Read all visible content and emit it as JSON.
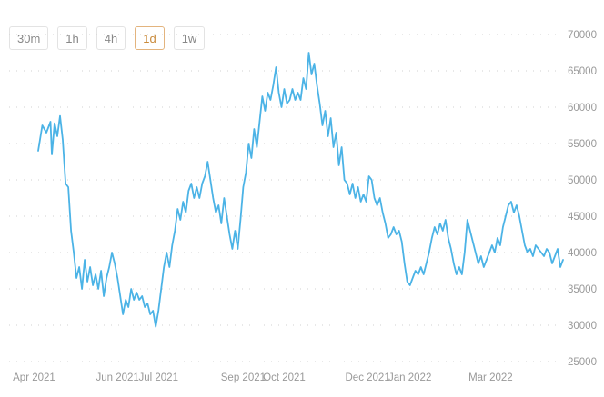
{
  "timeframes": [
    {
      "label": "30m",
      "active": false
    },
    {
      "label": "1h",
      "active": false
    },
    {
      "label": "4h",
      "active": false
    },
    {
      "label": "1d",
      "active": true
    },
    {
      "label": "1w",
      "active": false
    }
  ],
  "colors": {
    "line": "#4bb3e6",
    "grid": "#d0d0d0",
    "tick_text": "#999999",
    "active_border": "#e3b47e"
  },
  "chart_data": {
    "type": "line",
    "grid": "horizontal dotted",
    "ylim": [
      25000,
      70000
    ],
    "y_ticks": [
      25000,
      30000,
      35000,
      40000,
      45000,
      50000,
      55000,
      60000,
      65000,
      70000
    ],
    "y_tick_labels": [
      "25000",
      "30000",
      "35000",
      "40000",
      "45000",
      "50000",
      "55000",
      "60000",
      "65000",
      "70000"
    ],
    "x_range": [
      "2021-04-04",
      "2022-04-23"
    ],
    "x_ticks": [
      {
        "date": "2021-04-01",
        "label": "Apr 2021"
      },
      {
        "date": "2021-06-01",
        "label": "Jun 2021"
      },
      {
        "date": "2021-07-01",
        "label": "Jul 2021"
      },
      {
        "date": "2021-09-01",
        "label": "Sep 2021"
      },
      {
        "date": "2021-10-01",
        "label": "Oct 2021"
      },
      {
        "date": "2021-12-01",
        "label": "Dec 2021"
      },
      {
        "date": "2022-01-01",
        "label": "Jan 2022"
      },
      {
        "date": "2022-03-01",
        "label": "Mar 2022"
      }
    ],
    "series": [
      {
        "values": [
          [
            "2021-04-04",
            54000
          ],
          [
            "2021-04-07",
            57500
          ],
          [
            "2021-04-10",
            56500
          ],
          [
            "2021-04-13",
            58000
          ],
          [
            "2021-04-14",
            53500
          ],
          [
            "2021-04-16",
            57800
          ],
          [
            "2021-04-18",
            56000
          ],
          [
            "2021-04-20",
            58800
          ],
          [
            "2021-04-22",
            55500
          ],
          [
            "2021-04-24",
            49500
          ],
          [
            "2021-04-26",
            49000
          ],
          [
            "2021-04-28",
            43000
          ],
          [
            "2021-04-30",
            40000
          ],
          [
            "2021-05-02",
            36500
          ],
          [
            "2021-05-04",
            38000
          ],
          [
            "2021-05-06",
            35000
          ],
          [
            "2021-05-08",
            39000
          ],
          [
            "2021-05-10",
            36000
          ],
          [
            "2021-05-12",
            38000
          ],
          [
            "2021-05-14",
            35500
          ],
          [
            "2021-05-16",
            37000
          ],
          [
            "2021-05-18",
            35000
          ],
          [
            "2021-05-20",
            37500
          ],
          [
            "2021-05-22",
            34000
          ],
          [
            "2021-05-24",
            36500
          ],
          [
            "2021-05-26",
            38000
          ],
          [
            "2021-05-28",
            40000
          ],
          [
            "2021-05-30",
            38500
          ],
          [
            "2021-06-01",
            36500
          ],
          [
            "2021-06-03",
            34000
          ],
          [
            "2021-06-05",
            31500
          ],
          [
            "2021-06-07",
            33500
          ],
          [
            "2021-06-09",
            32500
          ],
          [
            "2021-06-11",
            35000
          ],
          [
            "2021-06-13",
            33500
          ],
          [
            "2021-06-15",
            34500
          ],
          [
            "2021-06-17",
            33500
          ],
          [
            "2021-06-19",
            34000
          ],
          [
            "2021-06-21",
            32500
          ],
          [
            "2021-06-23",
            33000
          ],
          [
            "2021-06-25",
            31500
          ],
          [
            "2021-06-27",
            32000
          ],
          [
            "2021-06-29",
            29800
          ],
          [
            "2021-07-01",
            32000
          ],
          [
            "2021-07-03",
            35000
          ],
          [
            "2021-07-05",
            38000
          ],
          [
            "2021-07-07",
            40000
          ],
          [
            "2021-07-09",
            38000
          ],
          [
            "2021-07-11",
            41000
          ],
          [
            "2021-07-13",
            43000
          ],
          [
            "2021-07-15",
            46000
          ],
          [
            "2021-07-17",
            44500
          ],
          [
            "2021-07-19",
            47000
          ],
          [
            "2021-07-21",
            45500
          ],
          [
            "2021-07-23",
            48500
          ],
          [
            "2021-07-25",
            49500
          ],
          [
            "2021-07-27",
            47500
          ],
          [
            "2021-07-29",
            49000
          ],
          [
            "2021-07-31",
            47500
          ],
          [
            "2021-08-02",
            49500
          ],
          [
            "2021-08-04",
            50500
          ],
          [
            "2021-08-06",
            52500
          ],
          [
            "2021-08-08",
            50000
          ],
          [
            "2021-08-10",
            47500
          ],
          [
            "2021-08-12",
            45500
          ],
          [
            "2021-08-14",
            46500
          ],
          [
            "2021-08-16",
            44000
          ],
          [
            "2021-08-18",
            47500
          ],
          [
            "2021-08-20",
            45000
          ],
          [
            "2021-08-22",
            42500
          ],
          [
            "2021-08-24",
            40500
          ],
          [
            "2021-08-26",
            43000
          ],
          [
            "2021-08-28",
            40500
          ],
          [
            "2021-08-30",
            44500
          ],
          [
            "2021-09-01",
            49000
          ],
          [
            "2021-09-03",
            51000
          ],
          [
            "2021-09-05",
            55000
          ],
          [
            "2021-09-07",
            53000
          ],
          [
            "2021-09-09",
            57000
          ],
          [
            "2021-09-11",
            54500
          ],
          [
            "2021-09-13",
            58000
          ],
          [
            "2021-09-15",
            61500
          ],
          [
            "2021-09-17",
            59500
          ],
          [
            "2021-09-19",
            62000
          ],
          [
            "2021-09-21",
            61000
          ],
          [
            "2021-09-23",
            63000
          ],
          [
            "2021-09-25",
            65500
          ],
          [
            "2021-09-27",
            62000
          ],
          [
            "2021-09-29",
            60000
          ],
          [
            "2021-10-01",
            62500
          ],
          [
            "2021-10-03",
            60500
          ],
          [
            "2021-10-05",
            61000
          ],
          [
            "2021-10-07",
            62500
          ],
          [
            "2021-10-09",
            61000
          ],
          [
            "2021-10-11",
            62000
          ],
          [
            "2021-10-13",
            61000
          ],
          [
            "2021-10-15",
            64000
          ],
          [
            "2021-10-17",
            62500
          ],
          [
            "2021-10-19",
            67500
          ],
          [
            "2021-10-21",
            64500
          ],
          [
            "2021-10-23",
            66000
          ],
          [
            "2021-10-25",
            63000
          ],
          [
            "2021-10-27",
            60500
          ],
          [
            "2021-10-29",
            57500
          ],
          [
            "2021-10-31",
            59500
          ],
          [
            "2021-11-02",
            56000
          ],
          [
            "2021-11-04",
            58500
          ],
          [
            "2021-11-06",
            54500
          ],
          [
            "2021-11-08",
            56500
          ],
          [
            "2021-11-10",
            52000
          ],
          [
            "2021-11-12",
            54500
          ],
          [
            "2021-11-14",
            50000
          ],
          [
            "2021-11-16",
            49500
          ],
          [
            "2021-11-18",
            48000
          ],
          [
            "2021-11-20",
            49500
          ],
          [
            "2021-11-22",
            47500
          ],
          [
            "2021-11-24",
            49000
          ],
          [
            "2021-11-26",
            47000
          ],
          [
            "2021-11-28",
            48000
          ],
          [
            "2021-11-30",
            47000
          ],
          [
            "2021-12-02",
            50500
          ],
          [
            "2021-12-04",
            50000
          ],
          [
            "2021-12-06",
            47500
          ],
          [
            "2021-12-08",
            46500
          ],
          [
            "2021-12-10",
            47500
          ],
          [
            "2021-12-12",
            45500
          ],
          [
            "2021-12-14",
            44000
          ],
          [
            "2021-12-16",
            42000
          ],
          [
            "2021-12-18",
            42500
          ],
          [
            "2021-12-20",
            43500
          ],
          [
            "2021-12-22",
            42500
          ],
          [
            "2021-12-24",
            43000
          ],
          [
            "2021-12-26",
            41500
          ],
          [
            "2021-12-28",
            38500
          ],
          [
            "2021-12-30",
            36000
          ],
          [
            "2022-01-01",
            35500
          ],
          [
            "2022-01-03",
            36500
          ],
          [
            "2022-01-05",
            37500
          ],
          [
            "2022-01-07",
            37000
          ],
          [
            "2022-01-09",
            38000
          ],
          [
            "2022-01-11",
            37000
          ],
          [
            "2022-01-13",
            38500
          ],
          [
            "2022-01-15",
            40000
          ],
          [
            "2022-01-17",
            42000
          ],
          [
            "2022-01-19",
            43500
          ],
          [
            "2022-01-21",
            42500
          ],
          [
            "2022-01-23",
            44000
          ],
          [
            "2022-01-25",
            43000
          ],
          [
            "2022-01-27",
            44500
          ],
          [
            "2022-01-29",
            42000
          ],
          [
            "2022-01-31",
            40500
          ],
          [
            "2022-02-02",
            38500
          ],
          [
            "2022-02-04",
            37000
          ],
          [
            "2022-02-06",
            38000
          ],
          [
            "2022-02-08",
            37000
          ],
          [
            "2022-02-10",
            40000
          ],
          [
            "2022-02-12",
            44500
          ],
          [
            "2022-02-14",
            43000
          ],
          [
            "2022-02-16",
            41500
          ],
          [
            "2022-02-18",
            40000
          ],
          [
            "2022-02-20",
            38500
          ],
          [
            "2022-02-22",
            39500
          ],
          [
            "2022-02-24",
            38000
          ],
          [
            "2022-02-26",
            39000
          ],
          [
            "2022-02-28",
            40000
          ],
          [
            "2022-03-02",
            41000
          ],
          [
            "2022-03-04",
            40000
          ],
          [
            "2022-03-06",
            42000
          ],
          [
            "2022-03-08",
            41000
          ],
          [
            "2022-03-10",
            43500
          ],
          [
            "2022-03-12",
            45000
          ],
          [
            "2022-03-14",
            46500
          ],
          [
            "2022-03-16",
            47000
          ],
          [
            "2022-03-18",
            45500
          ],
          [
            "2022-03-20",
            46500
          ],
          [
            "2022-03-22",
            45000
          ],
          [
            "2022-03-24",
            43000
          ],
          [
            "2022-03-26",
            41000
          ],
          [
            "2022-03-28",
            40000
          ],
          [
            "2022-03-30",
            40500
          ],
          [
            "2022-04-01",
            39500
          ],
          [
            "2022-04-03",
            41000
          ],
          [
            "2022-04-05",
            40500
          ],
          [
            "2022-04-07",
            40000
          ],
          [
            "2022-04-09",
            39500
          ],
          [
            "2022-04-11",
            40500
          ],
          [
            "2022-04-13",
            40000
          ],
          [
            "2022-04-15",
            38500
          ],
          [
            "2022-04-17",
            39500
          ],
          [
            "2022-04-19",
            40500
          ],
          [
            "2022-04-21",
            38000
          ],
          [
            "2022-04-23",
            39000
          ]
        ]
      }
    ]
  }
}
